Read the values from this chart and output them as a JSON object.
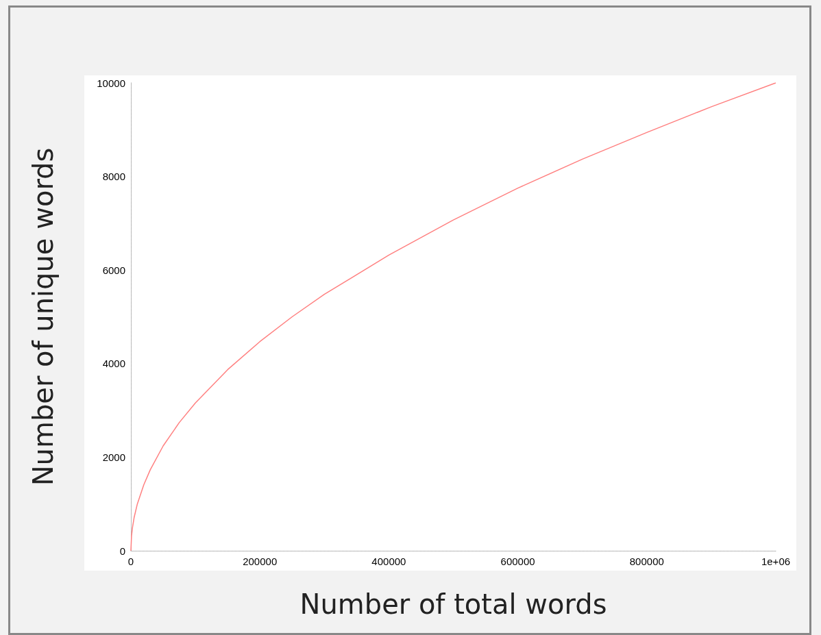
{
  "chart_data": {
    "type": "line",
    "xlabel": "Number of total words",
    "ylabel": "Number of unique words",
    "x": [
      0,
      1000,
      2500,
      5000,
      10000,
      20000,
      30000,
      50000,
      75000,
      100000,
      150000,
      200000,
      250000,
      300000,
      400000,
      500000,
      600000,
      700000,
      800000,
      900000,
      1000000
    ],
    "series": [
      {
        "color": "#ff8080",
        "values": [
          0,
          320,
          500,
          710,
          1000,
          1410,
          1730,
          2240,
          2740,
          3160,
          3870,
          4470,
          5000,
          5480,
          6320,
          7070,
          7750,
          8370,
          8940,
          9490,
          10000
        ]
      }
    ],
    "xlim": [
      0,
      1000000
    ],
    "xticks": [
      0,
      200000,
      400000,
      600000,
      800000,
      {
        "value": 1000000,
        "label": "1e+06"
      }
    ],
    "ylim": [
      0,
      10000
    ],
    "yticks": [
      0,
      2000,
      4000,
      6000,
      8000,
      10000
    ],
    "grid": false
  }
}
